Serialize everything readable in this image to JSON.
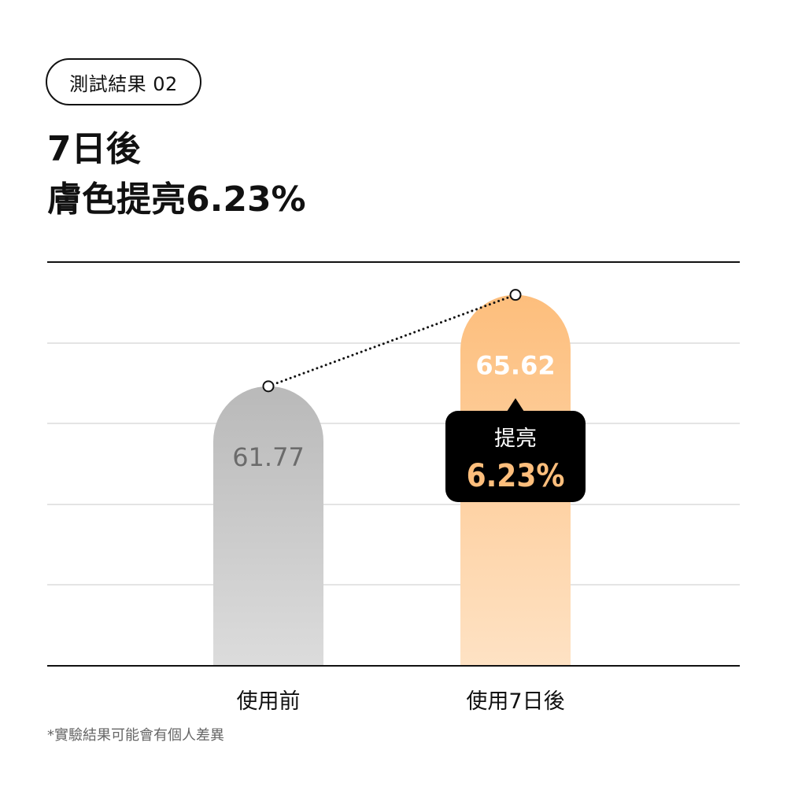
{
  "badge": {
    "label": "測試結果 02"
  },
  "headline": {
    "line1": "7日後",
    "line2": "膚色提亮6.23%"
  },
  "chart_data": {
    "type": "bar",
    "categories": [
      "使用前",
      "使用7日後"
    ],
    "values": [
      61.77,
      65.62
    ],
    "value_labels": [
      "61.77",
      "65.62"
    ],
    "ylim": [
      50,
      67
    ],
    "grid": true,
    "bar_colors": [
      {
        "top": "#b9b9b9",
        "bottom": "#dcdcdc"
      },
      {
        "top": "#fdbe7c",
        "bottom": "#fee2c4"
      }
    ],
    "value_label_colors": [
      "#6b6b6b",
      "#ffffff"
    ],
    "callout": {
      "label": "提亮",
      "value": "6.23%",
      "background": "#000000",
      "value_color": "#fdbe7c"
    },
    "trend_line": {
      "style": "dotted",
      "color": "#111111"
    }
  },
  "footnote": "*實驗結果可能會有個人差異"
}
